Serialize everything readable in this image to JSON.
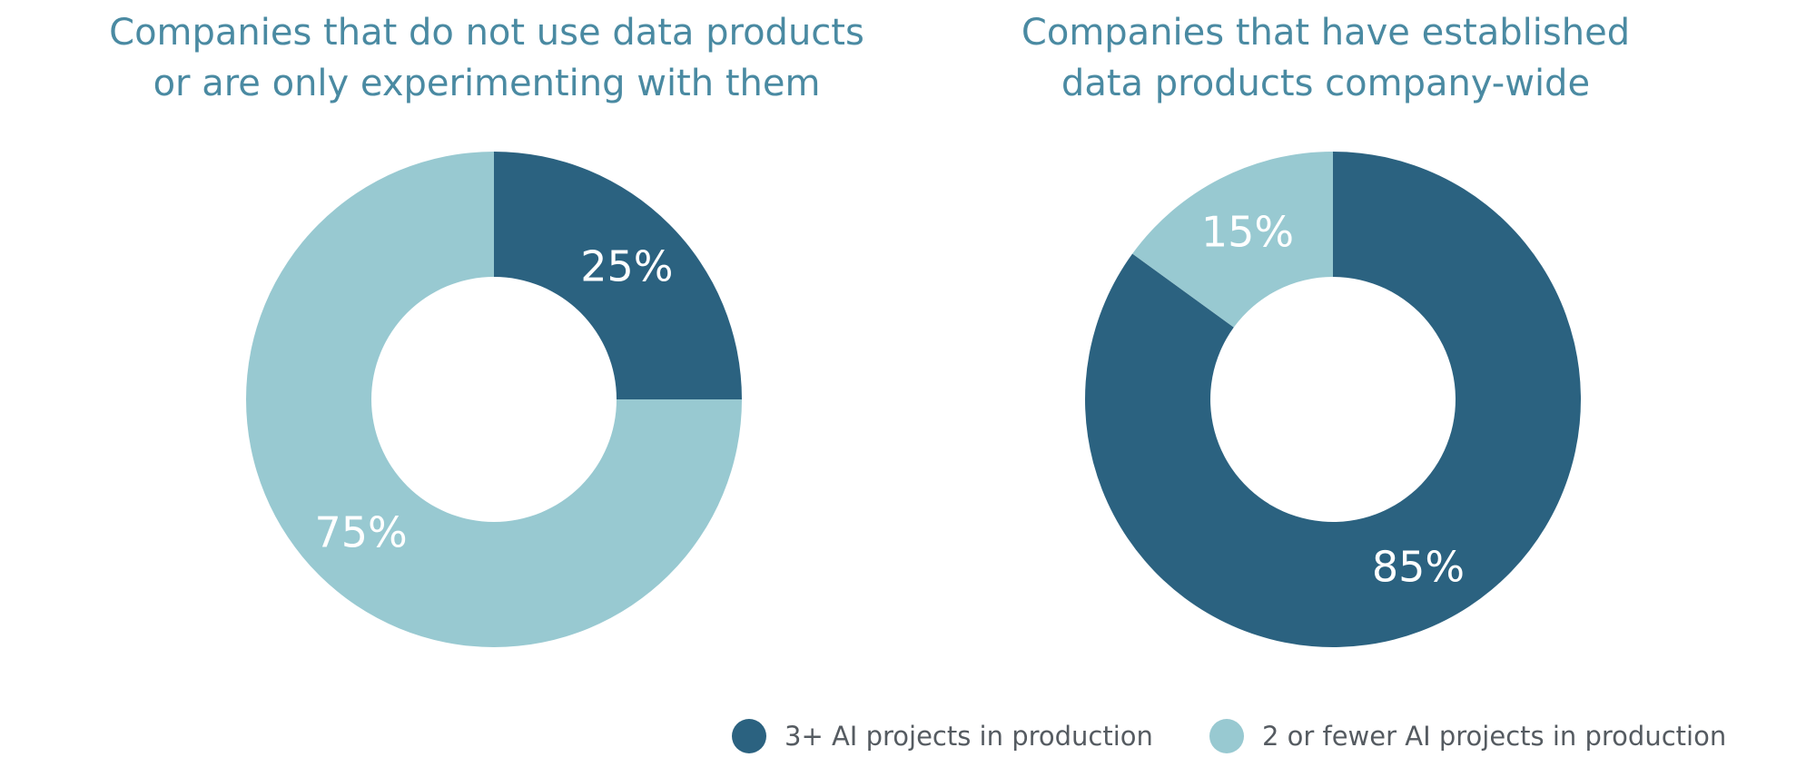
{
  "colors": {
    "dark": "#2b6280",
    "light": "#98c9d1",
    "title": "#4a8aa2",
    "legend_text": "#555b61"
  },
  "legend": [
    {
      "label": "3+ AI projects in production",
      "color": "#2b6280"
    },
    {
      "label": "2 or fewer AI projects in production",
      "color": "#98c9d1"
    }
  ],
  "chart_data": [
    {
      "type": "pie",
      "title_lines": [
        "Companies that do not use data products",
        "or are only experimenting with them"
      ],
      "title": "Companies that do not use data products or are only experimenting with them",
      "donut": true,
      "slices": [
        {
          "name": "3+ AI projects in production",
          "value": 25,
          "label": "25%",
          "color": "#2b6280"
        },
        {
          "name": "2 or fewer AI projects in production",
          "value": 75,
          "label": "75%",
          "color": "#98c9d1"
        }
      ]
    },
    {
      "type": "pie",
      "title_lines": [
        "Companies that have established",
        "data products company-wide"
      ],
      "title": "Companies that have established data products company-wide",
      "donut": true,
      "slices": [
        {
          "name": "3+ AI projects in production",
          "value": 85,
          "label": "85%",
          "color": "#2b6280"
        },
        {
          "name": "2 or fewer AI projects in production",
          "value": 15,
          "label": "15%",
          "color": "#98c9d1"
        }
      ]
    }
  ]
}
